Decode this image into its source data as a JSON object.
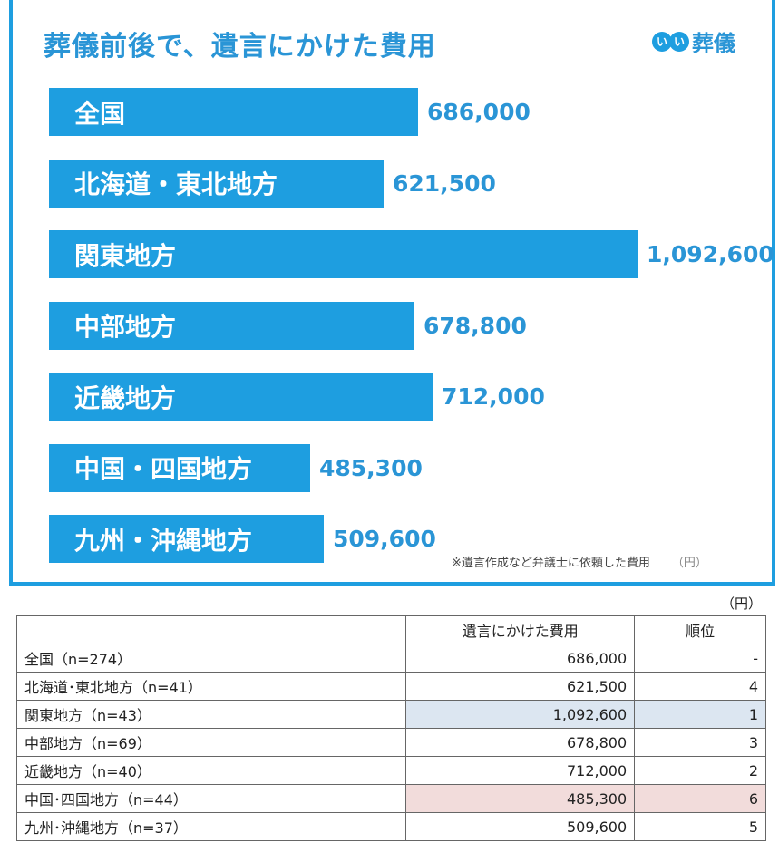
{
  "header": {
    "title": "葬儀前後で、遺言にかけた費用",
    "logo": {
      "dots": [
        "い",
        "い"
      ],
      "text": "葬儀"
    }
  },
  "colors": {
    "bar": "#1e9ee0",
    "title": "#2a95d6",
    "highlight_max": "#dce6f1",
    "highlight_min": "#f2dcdb"
  },
  "chart_data": {
    "type": "bar",
    "orientation": "horizontal",
    "title": "葬儀前後で、遺言にかけた費用",
    "categories": [
      "全国",
      "北海道・東北地方",
      "関東地方",
      "中部地方",
      "近畿地方",
      "中国・四国地方",
      "九州・沖縄地方"
    ],
    "values": [
      686000,
      621500,
      1092600,
      678800,
      712000,
      485300,
      509600
    ],
    "value_labels": [
      "686,000",
      "621,500",
      "1,092,600",
      "678,800",
      "712,000",
      "485,300",
      "509,600"
    ],
    "unit": "（円）",
    "note": "※遺言作成など弁護士に依頼した費用",
    "xlabel": "",
    "ylabel": "",
    "grid": false,
    "legend": null
  },
  "chart_note": {
    "text": "※遺言作成など弁護士に依頼した費用",
    "unit": "（円）"
  },
  "table": {
    "unit": "（円）",
    "headers": [
      "",
      "遺言にかけた費用",
      "順位"
    ],
    "rows": [
      {
        "region": "全国（n=274）",
        "cost": "686,000",
        "rank": "-"
      },
      {
        "region": "北海道･東北地方（n=41）",
        "cost": "621,500",
        "rank": "4"
      },
      {
        "region": "関東地方（n=43）",
        "cost": "1,092,600",
        "rank": "1"
      },
      {
        "region": "中部地方（n=69）",
        "cost": "678,800",
        "rank": "3"
      },
      {
        "region": "近畿地方（n=40）",
        "cost": "712,000",
        "rank": "2"
      },
      {
        "region": "中国･四国地方（n=44）",
        "cost": "485,300",
        "rank": "6"
      },
      {
        "region": "九州･沖縄地方（n=37）",
        "cost": "509,600",
        "rank": "5"
      }
    ]
  }
}
